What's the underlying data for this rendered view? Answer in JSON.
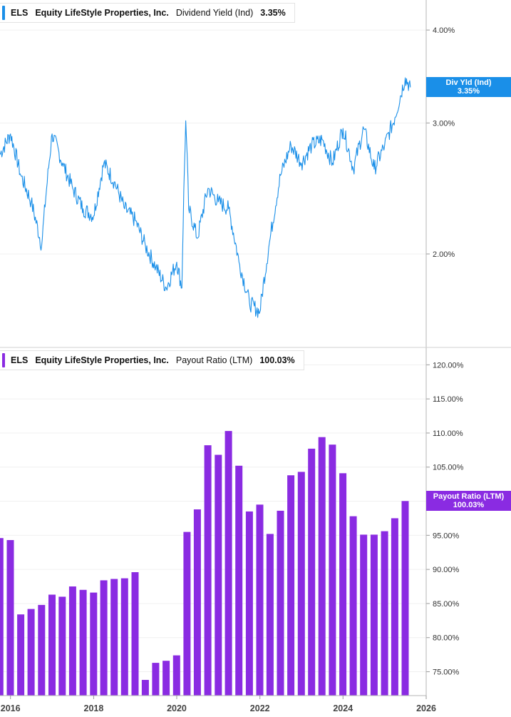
{
  "chart_data": [
    {
      "type": "line",
      "ticker": "ELS",
      "company": "Equity LifeStyle Properties, Inc.",
      "metric": "Dividend Yield (Ind)",
      "current_value": "3.35%",
      "tag_label": "Div Yld (Ind)",
      "tag_value": "3.35%",
      "color": "#1a8fe8",
      "y_scale": "log",
      "ylim": [
        1.6,
        4.2
      ],
      "y_ticks": [
        2.0,
        3.0,
        4.0
      ],
      "y_tick_labels": [
        "2.00%",
        "3.00%",
        "4.00%"
      ],
      "x": [
        "2015-09-30",
        "2016-01-01",
        "2016-04-01",
        "2016-07-01",
        "2016-10-01",
        "2017-01-01",
        "2017-04-01",
        "2017-07-01",
        "2017-10-01",
        "2018-01-01",
        "2018-04-01",
        "2018-07-01",
        "2018-10-01",
        "2019-01-01",
        "2019-04-01",
        "2019-07-01",
        "2019-10-01",
        "2020-01-01",
        "2020-02-15",
        "2020-03-20",
        "2020-04-15",
        "2020-07-01",
        "2020-10-01",
        "2021-01-01",
        "2021-04-01",
        "2021-07-01",
        "2021-10-01",
        "2021-12-31",
        "2022-04-01",
        "2022-07-01",
        "2022-10-01",
        "2023-01-01",
        "2023-04-01",
        "2023-07-01",
        "2023-10-01",
        "2024-01-01",
        "2024-04-01",
        "2024-07-01",
        "2024-10-01",
        "2025-01-01",
        "2025-04-01",
        "2025-07-01",
        "2025-08-15"
      ],
      "y": [
        2.72,
        2.9,
        2.55,
        2.35,
        2.05,
        2.9,
        2.65,
        2.45,
        2.3,
        2.25,
        2.65,
        2.5,
        2.3,
        2.22,
        2.05,
        1.92,
        1.8,
        1.95,
        1.8,
        3.02,
        2.3,
        2.1,
        2.45,
        2.35,
        2.3,
        1.95,
        1.72,
        1.67,
        2.1,
        2.55,
        2.8,
        2.65,
        2.8,
        2.85,
        2.65,
        2.95,
        2.6,
        2.95,
        2.6,
        2.8,
        3.05,
        3.45,
        3.35
      ],
      "xlim": [
        "2015-10-01",
        "2026-01-01"
      ]
    },
    {
      "type": "bar",
      "ticker": "ELS",
      "company": "Equity LifeStyle Properties, Inc.",
      "metric": "Payout Ratio (LTM)",
      "current_value": "100.03%",
      "tag_label": "Payout Ratio (LTM)",
      "tag_value": "100.03%",
      "color": "#8a2be2",
      "ylim": [
        71.5,
        121.5
      ],
      "y_ticks": [
        75,
        80,
        85,
        90,
        95,
        100,
        105,
        110,
        115,
        120
      ],
      "y_tick_labels": [
        "75.00%",
        "80.00%",
        "85.00%",
        "90.00%",
        "95.00%",
        "",
        "105.00%",
        "110.00%",
        "115.00%",
        "120.00%"
      ],
      "x": [
        "2015-09-30",
        "2015-12-31",
        "2016-03-31",
        "2016-06-30",
        "2016-09-30",
        "2016-12-31",
        "2017-03-31",
        "2017-06-30",
        "2017-09-30",
        "2017-12-31",
        "2018-03-31",
        "2018-06-30",
        "2018-09-30",
        "2018-12-31",
        "2019-03-31",
        "2019-06-30",
        "2019-09-30",
        "2019-12-31",
        "2020-03-31",
        "2020-06-30",
        "2020-09-30",
        "2020-12-31",
        "2021-03-31",
        "2021-06-30",
        "2021-09-30",
        "2021-12-31",
        "2022-03-31",
        "2022-06-30",
        "2022-09-30",
        "2022-12-31",
        "2023-03-31",
        "2023-06-30",
        "2023-09-30",
        "2023-12-31",
        "2024-03-31",
        "2024-06-30",
        "2024-09-30",
        "2024-12-31",
        "2025-03-31",
        "2025-06-30"
      ],
      "values": [
        94.6,
        94.3,
        83.4,
        84.2,
        84.8,
        86.3,
        86.0,
        87.5,
        87.0,
        86.6,
        88.4,
        88.6,
        88.7,
        89.6,
        73.8,
        76.3,
        76.6,
        77.4,
        95.5,
        98.8,
        108.2,
        106.8,
        110.3,
        105.2,
        98.5,
        99.5,
        95.2,
        98.6,
        103.8,
        104.3,
        107.7,
        109.4,
        108.3,
        104.1,
        97.8,
        95.1,
        95.1,
        95.6,
        97.5,
        100.03
      ]
    }
  ],
  "x_axis": {
    "tick_dates": [
      "2016-01-01",
      "2018-01-01",
      "2020-01-01",
      "2022-01-01",
      "2024-01-01",
      "2026-01-01"
    ],
    "tick_labels": [
      "2016",
      "2018",
      "2020",
      "2022",
      "2024",
      "2026"
    ]
  }
}
